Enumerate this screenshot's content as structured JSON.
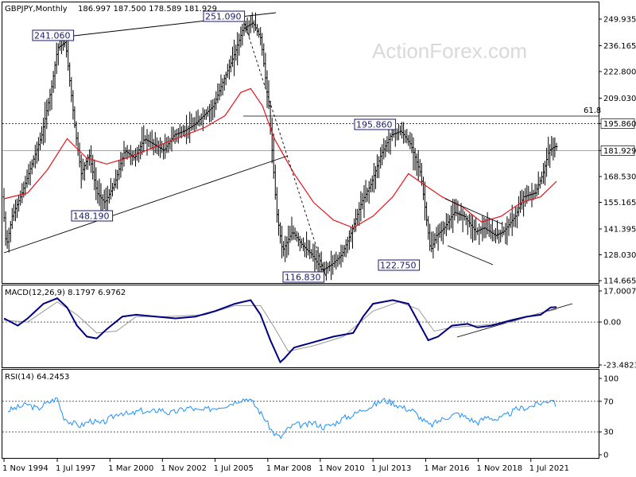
{
  "header": {
    "symbol": "GBPJPY,Monthly",
    "ohlc": "186.997 187.500 178.589 181.929"
  },
  "watermark": "ActionForex.com",
  "colors": {
    "bars": "#000000",
    "ma": "#e8141e",
    "macd": "#000080",
    "signal": "#999999",
    "rsi": "#1e90ff",
    "trendline": "#000000",
    "box_border": "#1a1a6e"
  },
  "chart_data": [
    {
      "type": "line",
      "panel": "price",
      "ylim": [
        110,
        255
      ],
      "y_ticks": [
        "249.935",
        "236.165",
        "222.800",
        "209.030",
        "195.860",
        "181.929",
        "168.530",
        "155.165",
        "141.395",
        "128.030",
        "114.665"
      ],
      "x_ticks": [
        "1 Nov 1994",
        "1 Jul 1997",
        "1 Mar 2000",
        "1 Nov 2002",
        "1 Jul 2005",
        "1 Mar 2008",
        "1 Nov 2010",
        "1 Jul 2013",
        "1 Mar 2016",
        "1 Nov 2018",
        "1 Jul 2021"
      ],
      "series": [
        {
          "values_x": [
            1994.8,
            1995.0,
            1995.3,
            1995.8,
            1996.3,
            1996.8,
            1997.3,
            1997.6,
            1998.0,
            1998.5,
            1998.8,
            1999.2,
            1999.6,
            2000.0,
            2000.5,
            2001.0,
            2001.5,
            2002.0,
            2002.5,
            2003.0,
            2003.5,
            2004.0,
            2004.5,
            2005.0,
            2005.5,
            2006.0,
            2006.5,
            2007.0,
            2007.5,
            2007.9,
            2008.3,
            2008.7,
            2009.0,
            2009.5,
            2010.0,
            2010.5,
            2011.0,
            2011.5,
            2012.0,
            2012.5,
            2013.0,
            2013.5,
            2014.0,
            2014.5,
            2015.0,
            2015.5,
            2016.0,
            2016.5,
            2016.8,
            2017.2,
            2017.7,
            2018.2,
            2018.8,
            2019.2,
            2019.8,
            2020.2,
            2020.8,
            2021.2,
            2021.8,
            2022.2,
            2022.5,
            2022.8
          ],
          "values_y": [
            158,
            132,
            148,
            160,
            175,
            190,
            215,
            235,
            238,
            192,
            170,
            180,
            160,
            155,
            165,
            182,
            178,
            188,
            185,
            182,
            190,
            192,
            195,
            200,
            205,
            218,
            230,
            245,
            248,
            240,
            205,
            150,
            130,
            140,
            133,
            128,
            120,
            123,
            128,
            140,
            155,
            165,
            180,
            190,
            192,
            185,
            170,
            130,
            138,
            142,
            150,
            148,
            140,
            142,
            138,
            140,
            148,
            158,
            160,
            170,
            182,
            184
          ]
        },
        {
          "values_x": [
            1994.8,
            1996.0,
            1997.0,
            1998.0,
            1999.0,
            2000.0,
            2001.0,
            2002.0,
            2003.0,
            2004.0,
            2005.0,
            2006.0,
            2006.8,
            2007.3,
            2007.9,
            2008.5,
            2009.5,
            2010.5,
            2011.5,
            2012.5,
            2013.5,
            2014.5,
            2015.3,
            2016.0,
            2017.0,
            2018.0,
            2019.0,
            2020.0,
            2021.0,
            2022.0,
            2022.8
          ],
          "values_y": [
            157,
            160,
            172,
            188,
            178,
            175,
            178,
            182,
            186,
            190,
            194,
            200,
            212,
            214,
            205,
            188,
            170,
            155,
            146,
            142,
            148,
            158,
            170,
            165,
            158,
            153,
            145,
            148,
            155,
            158,
            166
          ]
        }
      ],
      "annotations": [
        "241.060",
        "251.090",
        "195.860",
        "148.190",
        "116.830",
        "122.750"
      ],
      "fib_label": "61.8",
      "last_price": "181.929"
    },
    {
      "type": "line",
      "panel": "macd",
      "title": "MACD(12,26,9) 8.1797 6.9762",
      "ylim": [
        -25,
        18
      ],
      "y_ticks": [
        "17.0007",
        "0.00",
        "-23.4823"
      ],
      "series": [
        {
          "values_x": [
            1994.8,
            1995.5,
            1996.0,
            1996.8,
            1997.5,
            1998.0,
            1998.5,
            1999.0,
            1999.5,
            2000.0,
            2000.8,
            2001.5,
            2002.5,
            2003.5,
            2004.5,
            2005.5,
            2006.5,
            2007.3,
            2007.8,
            2008.3,
            2008.8,
            2009.0,
            2009.5,
            2010.5,
            2011.5,
            2012.5,
            2013.0,
            2013.5,
            2014.5,
            2015.3,
            2015.8,
            2016.3,
            2016.8,
            2017.5,
            2018.3,
            2018.8,
            2019.5,
            2020.5,
            2021.3,
            2022.0,
            2022.5,
            2022.8
          ],
          "values_y": [
            2,
            -2,
            2,
            10,
            13,
            8,
            -2,
            -8,
            -9,
            -4,
            3,
            4,
            3,
            2,
            3,
            6,
            10,
            12,
            4,
            -10,
            -22,
            -20,
            -14,
            -11,
            -8,
            -6,
            3,
            10,
            12,
            10,
            0,
            -10,
            -8,
            -2,
            -1,
            -3,
            -2,
            1,
            3,
            4,
            8,
            8.2
          ]
        },
        {
          "values_x": [
            1994.8,
            1996.0,
            1997.5,
            1998.5,
            1999.5,
            2000.5,
            2001.5,
            2003.0,
            2005.0,
            2006.5,
            2007.8,
            2008.5,
            2009.2,
            2010.5,
            2012.0,
            2013.5,
            2014.8,
            2015.8,
            2016.6,
            2017.5,
            2018.8,
            2020.5,
            2022.0,
            2022.8
          ],
          "values_y": [
            1,
            0,
            11,
            4,
            -6,
            -5,
            3,
            3,
            4,
            9,
            9,
            -3,
            -16,
            -13,
            -8,
            6,
            11,
            7,
            -5,
            -3,
            -2,
            0,
            5,
            7
          ]
        }
      ]
    },
    {
      "type": "line",
      "panel": "rsi",
      "title": "RSI(14) 64.2453",
      "ylim": [
        0,
        100
      ],
      "y_ticks": [
        "100",
        "70",
        "30",
        "0"
      ],
      "series": [
        {
          "values_x": [
            1995.0,
            1995.5,
            1996.0,
            1996.5,
            1997.0,
            1997.5,
            1997.8,
            1998.2,
            1998.7,
            1999.2,
            1999.7,
            2000.2,
            2000.7,
            2001.2,
            2001.7,
            2002.2,
            2002.7,
            2003.2,
            2003.7,
            2004.2,
            2004.7,
            2005.2,
            2005.7,
            2006.2,
            2006.7,
            2007.2,
            2007.6,
            2008.0,
            2008.4,
            2008.8,
            2009.2,
            2009.6,
            2010.0,
            2010.5,
            2011.0,
            2011.5,
            2012.0,
            2012.5,
            2013.0,
            2013.5,
            2014.0,
            2014.5,
            2015.0,
            2015.5,
            2016.0,
            2016.4,
            2016.8,
            2017.3,
            2017.8,
            2018.3,
            2018.8,
            2019.3,
            2019.8,
            2020.3,
            2020.8,
            2021.3,
            2021.8,
            2022.3,
            2022.6,
            2022.8
          ],
          "values_y": [
            58,
            62,
            66,
            60,
            68,
            74,
            50,
            42,
            38,
            45,
            40,
            48,
            56,
            52,
            58,
            55,
            60,
            54,
            58,
            62,
            57,
            60,
            63,
            66,
            72,
            74,
            62,
            48,
            30,
            22,
            34,
            40,
            38,
            42,
            36,
            40,
            48,
            52,
            60,
            64,
            72,
            68,
            62,
            58,
            46,
            38,
            44,
            50,
            54,
            48,
            42,
            50,
            46,
            52,
            60,
            62,
            66,
            70,
            74,
            64
          ]
        }
      ]
    }
  ]
}
